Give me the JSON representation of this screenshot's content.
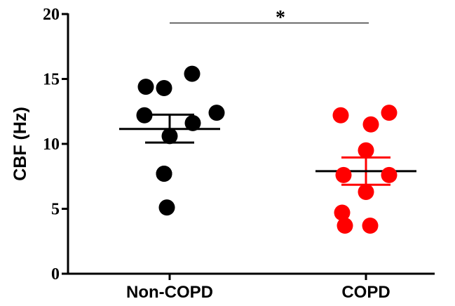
{
  "chart_data": {
    "type": "scatter",
    "ylabel": "CBF (Hz)",
    "ylim": [
      0,
      20
    ],
    "yticks": [
      0,
      5,
      10,
      15,
      20
    ],
    "categories": [
      "Non-COPD",
      "COPD"
    ],
    "series": [
      {
        "category": "Non-COPD",
        "color": "#000000",
        "points": [
          15.4,
          14.4,
          14.3,
          12.2,
          12.4,
          11.6,
          10.6,
          7.7,
          7.7,
          5.1
        ],
        "mean": 11.15,
        "sem_low": 10.1,
        "sem_high": 12.25
      },
      {
        "category": "COPD",
        "color": "#ff0000",
        "points": [
          12.2,
          12.4,
          11.5,
          9.5,
          7.6,
          7.6,
          6.3,
          4.7,
          3.7,
          3.7
        ],
        "mean": 7.9,
        "sem_low": 6.85,
        "sem_high": 8.95
      }
    ],
    "significance": {
      "label": "*",
      "between": [
        "Non-COPD",
        "COPD"
      ],
      "y": 19.2
    }
  }
}
